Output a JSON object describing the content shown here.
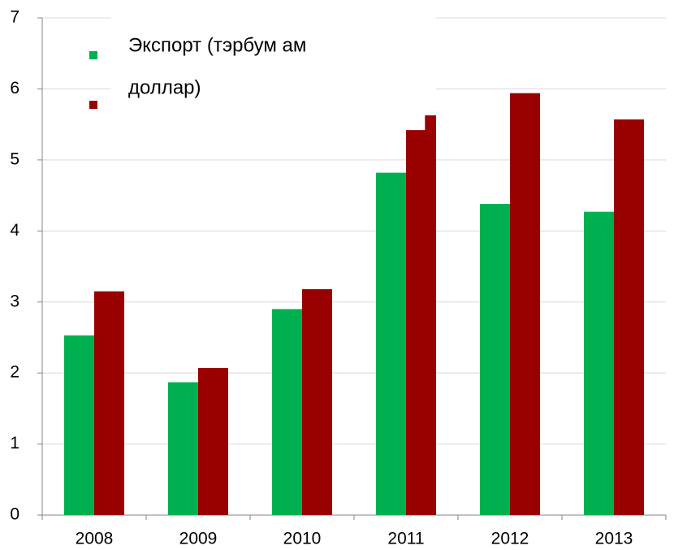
{
  "chart_data": {
    "type": "bar",
    "annotation_lines": [
      "Экспорт (тэрбум ам",
      "доллар)"
    ],
    "categories": [
      "2008",
      "2009",
      "2010",
      "2011",
      "2012",
      "2013"
    ],
    "series": [
      {
        "color": "#00b050",
        "values": [
          2.53,
          1.87,
          2.9,
          4.82,
          4.38,
          4.27
        ]
      },
      {
        "color": "#990000",
        "values": [
          3.15,
          2.07,
          3.18,
          5.42,
          5.94,
          5.57
        ]
      },
      {
        "color": "#990000",
        "values": [
          null,
          null,
          null,
          5.81,
          null,
          null
        ]
      }
    ],
    "ylim": [
      0,
      7
    ],
    "yticks": [
      0,
      1,
      2,
      3,
      4,
      5,
      6,
      7
    ],
    "grid": true
  }
}
